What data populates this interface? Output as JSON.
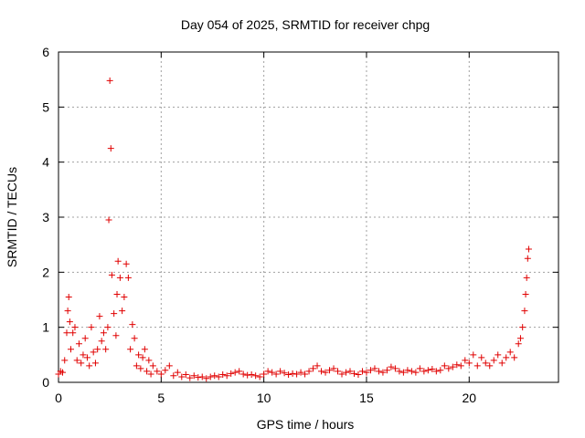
{
  "chart_data": {
    "type": "scatter",
    "title": "Day 054 of 2025, SRMTID for receiver chpg",
    "xlabel": "GPS time / hours",
    "ylabel": "SRMTID / TECUs",
    "xlim": [
      0,
      24.35
    ],
    "ylim": [
      0,
      6
    ],
    "xticks": [
      0,
      5,
      10,
      15,
      20
    ],
    "yticks": [
      0,
      1,
      2,
      3,
      4,
      5,
      6
    ],
    "grid": true,
    "marker": "+",
    "color": "#e00000",
    "series": [
      {
        "name": "SRMTID",
        "x": [
          0.0,
          0.1,
          0.2,
          0.3,
          0.4,
          0.45,
          0.5,
          0.55,
          0.6,
          0.7,
          0.8,
          0.9,
          1.0,
          1.1,
          1.2,
          1.3,
          1.4,
          1.5,
          1.6,
          1.7,
          1.8,
          1.9,
          2.0,
          2.1,
          2.2,
          2.3,
          2.4,
          2.45,
          2.5,
          2.55,
          2.6,
          2.7,
          2.8,
          2.85,
          2.9,
          3.0,
          3.1,
          3.2,
          3.3,
          3.4,
          3.5,
          3.6,
          3.7,
          3.8,
          3.9,
          4.0,
          4.1,
          4.2,
          4.3,
          4.4,
          4.5,
          4.6,
          4.8,
          5.0,
          5.2,
          5.4,
          5.6,
          5.8,
          6.0,
          6.2,
          6.4,
          6.6,
          6.8,
          7.0,
          7.2,
          7.4,
          7.6,
          7.8,
          8.0,
          8.2,
          8.4,
          8.6,
          8.8,
          9.0,
          9.2,
          9.4,
          9.6,
          9.8,
          10.0,
          10.2,
          10.4,
          10.6,
          10.8,
          11.0,
          11.2,
          11.4,
          11.6,
          11.8,
          12.0,
          12.2,
          12.4,
          12.6,
          12.8,
          13.0,
          13.2,
          13.4,
          13.6,
          13.8,
          14.0,
          14.2,
          14.4,
          14.6,
          14.8,
          15.0,
          15.2,
          15.4,
          15.6,
          15.8,
          16.0,
          16.2,
          16.4,
          16.6,
          16.8,
          17.0,
          17.2,
          17.4,
          17.6,
          17.8,
          18.0,
          18.2,
          18.4,
          18.6,
          18.8,
          19.0,
          19.2,
          19.4,
          19.6,
          19.8,
          20.0,
          20.2,
          20.4,
          20.6,
          20.8,
          21.0,
          21.2,
          21.4,
          21.6,
          21.8,
          22.0,
          22.2,
          22.4,
          22.5,
          22.6,
          22.7,
          22.75,
          22.8,
          22.85,
          22.9
        ],
        "y": [
          0.15,
          0.2,
          0.18,
          0.4,
          0.9,
          1.3,
          1.55,
          1.1,
          0.6,
          0.9,
          1.0,
          0.4,
          0.7,
          0.35,
          0.5,
          0.8,
          0.45,
          0.3,
          1.0,
          0.55,
          0.35,
          0.6,
          1.2,
          0.75,
          0.9,
          0.6,
          1.0,
          2.95,
          5.48,
          4.25,
          1.95,
          1.25,
          0.85,
          1.6,
          2.2,
          1.9,
          1.3,
          1.55,
          2.15,
          1.9,
          0.6,
          1.05,
          0.8,
          0.3,
          0.5,
          0.25,
          0.45,
          0.6,
          0.2,
          0.4,
          0.15,
          0.3,
          0.2,
          0.15,
          0.22,
          0.3,
          0.12,
          0.18,
          0.1,
          0.14,
          0.08,
          0.12,
          0.09,
          0.1,
          0.07,
          0.1,
          0.12,
          0.1,
          0.14,
          0.12,
          0.16,
          0.18,
          0.2,
          0.15,
          0.13,
          0.14,
          0.12,
          0.1,
          0.15,
          0.2,
          0.18,
          0.15,
          0.2,
          0.17,
          0.14,
          0.16,
          0.15,
          0.18,
          0.15,
          0.2,
          0.25,
          0.3,
          0.2,
          0.18,
          0.22,
          0.25,
          0.2,
          0.15,
          0.18,
          0.2,
          0.16,
          0.14,
          0.2,
          0.18,
          0.22,
          0.25,
          0.2,
          0.18,
          0.22,
          0.28,
          0.25,
          0.2,
          0.18,
          0.22,
          0.2,
          0.18,
          0.25,
          0.2,
          0.22,
          0.24,
          0.2,
          0.22,
          0.3,
          0.25,
          0.28,
          0.32,
          0.3,
          0.4,
          0.35,
          0.5,
          0.3,
          0.45,
          0.35,
          0.3,
          0.4,
          0.5,
          0.35,
          0.45,
          0.55,
          0.45,
          0.7,
          0.8,
          1.0,
          1.3,
          1.6,
          1.9,
          2.25,
          2.42
        ]
      }
    ]
  }
}
